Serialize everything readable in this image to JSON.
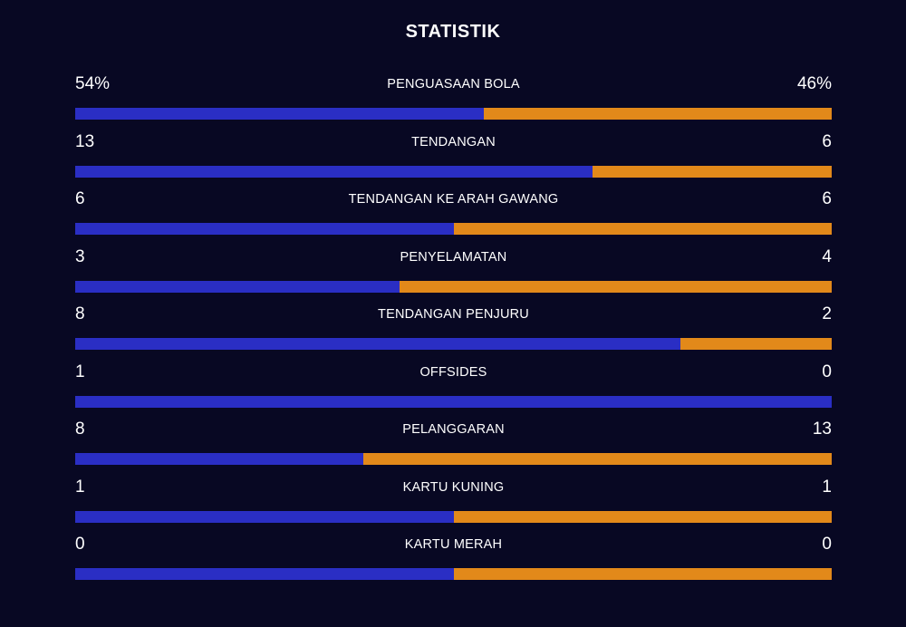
{
  "title": "STATISTIK",
  "colors": {
    "background": "#080823",
    "home": "#2a2ec4",
    "away": "#e2891a",
    "text": "#ffffff"
  },
  "stats": [
    {
      "label": "PENGUASAAN BOLA",
      "home": "54%",
      "away": "46%",
      "home_value": 54,
      "away_value": 46
    },
    {
      "label": "TENDANGAN",
      "home": "13",
      "away": "6",
      "home_value": 13,
      "away_value": 6
    },
    {
      "label": "TENDANGAN KE ARAH GAWANG",
      "home": "6",
      "away": "6",
      "home_value": 6,
      "away_value": 6
    },
    {
      "label": "PENYELAMATAN",
      "home": "3",
      "away": "4",
      "home_value": 3,
      "away_value": 4
    },
    {
      "label": "TENDANGAN PENJURU",
      "home": "8",
      "away": "2",
      "home_value": 8,
      "away_value": 2
    },
    {
      "label": "OFFSIDES",
      "home": "1",
      "away": "0",
      "home_value": 1,
      "away_value": 0
    },
    {
      "label": "PELANGGARAN",
      "home": "8",
      "away": "13",
      "home_value": 8,
      "away_value": 13
    },
    {
      "label": "KARTU KUNING",
      "home": "1",
      "away": "1",
      "home_value": 1,
      "away_value": 1
    },
    {
      "label": "KARTU MERAH",
      "home": "0",
      "away": "0",
      "home_value": 0,
      "away_value": 0
    }
  ]
}
